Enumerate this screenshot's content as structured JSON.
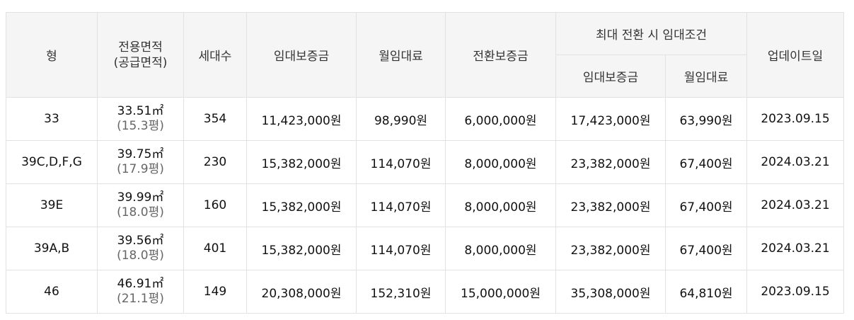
{
  "table": {
    "headers": {
      "type": "형",
      "area_line1": "전용면적",
      "area_line2": "(공급면적)",
      "households": "세대수",
      "deposit": "임대보증금",
      "monthly_rent": "월임대료",
      "conversion_deposit": "전환보증금",
      "max_conversion_group": "최대 전환 시 임대조건",
      "max_deposit": "임대보증금",
      "max_monthly_rent": "월임대료",
      "updated": "업데이트일"
    },
    "rows": [
      {
        "type": "33",
        "area": "33.51㎡",
        "supply_area": "(15.3평)",
        "households": "354",
        "deposit": "11,423,000원",
        "monthly_rent": "98,990원",
        "conversion_deposit": "6,000,000원",
        "max_deposit": "17,423,000원",
        "max_monthly_rent": "63,990원",
        "updated": "2023.09.15"
      },
      {
        "type": "39C,D,F,G",
        "area": "39.75㎡",
        "supply_area": "(17.9평)",
        "households": "230",
        "deposit": "15,382,000원",
        "monthly_rent": "114,070원",
        "conversion_deposit": "8,000,000원",
        "max_deposit": "23,382,000원",
        "max_monthly_rent": "67,400원",
        "updated": "2024.03.21"
      },
      {
        "type": "39E",
        "area": "39.99㎡",
        "supply_area": "(18.0평)",
        "households": "160",
        "deposit": "15,382,000원",
        "monthly_rent": "114,070원",
        "conversion_deposit": "8,000,000원",
        "max_deposit": "23,382,000원",
        "max_monthly_rent": "67,400원",
        "updated": "2024.03.21"
      },
      {
        "type": "39A,B",
        "area": "39.56㎡",
        "supply_area": "(18.0평)",
        "households": "401",
        "deposit": "15,382,000원",
        "monthly_rent": "114,070원",
        "conversion_deposit": "8,000,000원",
        "max_deposit": "23,382,000원",
        "max_monthly_rent": "67,400원",
        "updated": "2024.03.21"
      },
      {
        "type": "46",
        "area": "46.91㎡",
        "supply_area": "(21.1평)",
        "households": "149",
        "deposit": "20,308,000원",
        "monthly_rent": "152,310원",
        "conversion_deposit": "15,000,000원",
        "max_deposit": "35,308,000원",
        "max_monthly_rent": "64,810원",
        "updated": "2023.09.15"
      }
    ]
  }
}
